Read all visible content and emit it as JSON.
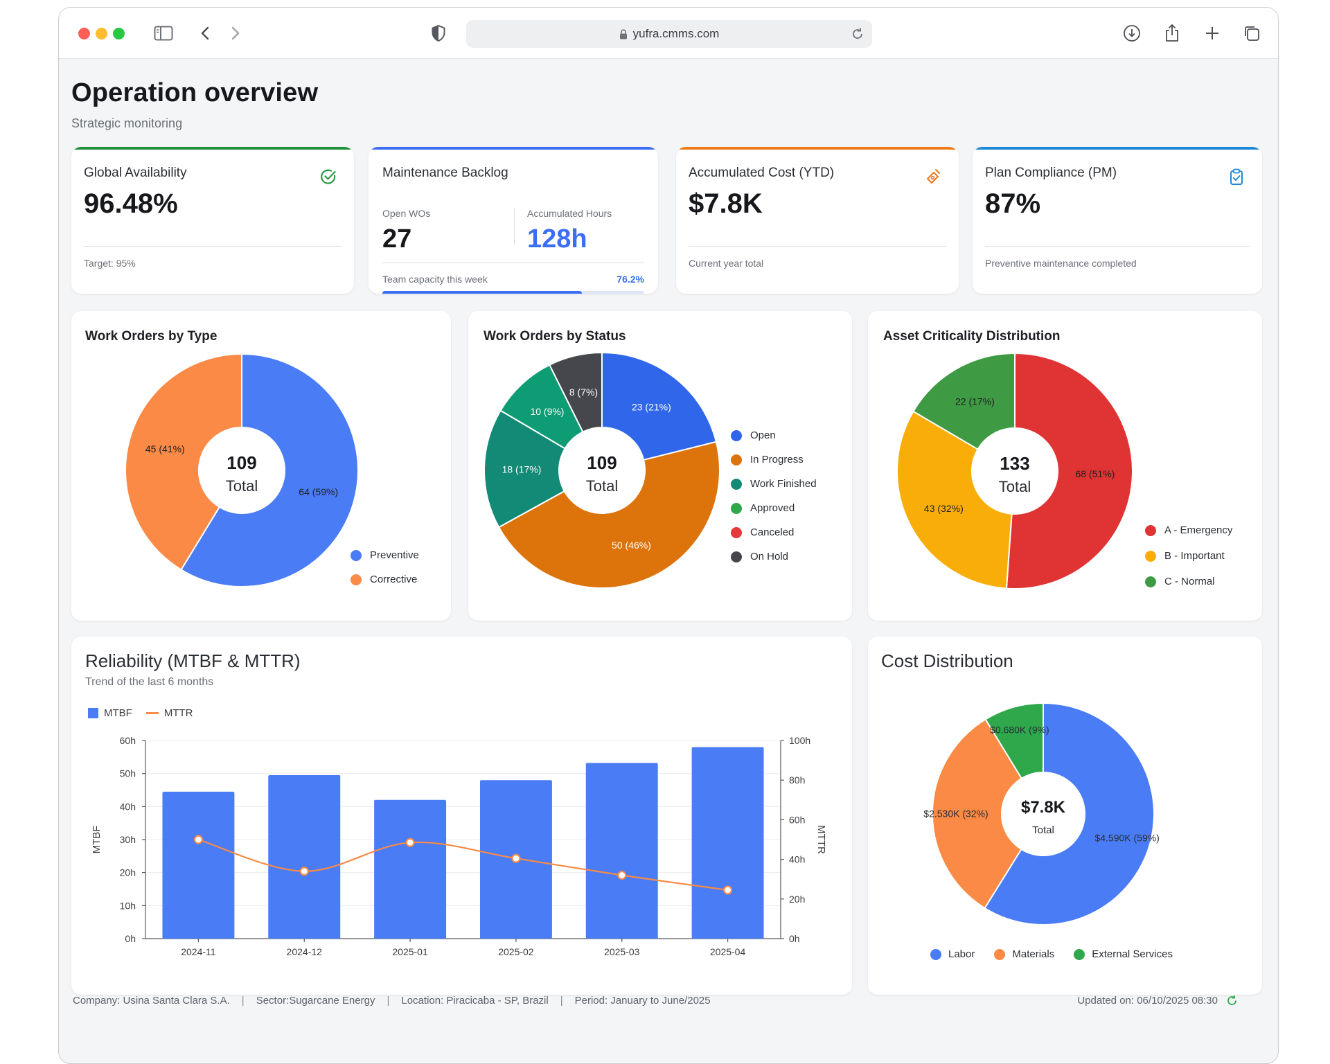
{
  "browser": {
    "url": "yufra.cmms.com"
  },
  "page": {
    "title": "Operation overview",
    "subtitle": "Strategic monitoring"
  },
  "kpis": {
    "availability": {
      "title": "Global Availability",
      "value": "96.48%",
      "note": "Target: 95%",
      "accent": "#1f8f3a",
      "icon": "check-circle-icon"
    },
    "backlog": {
      "title": "Maintenance Backlog",
      "open_label": "Open WOs",
      "open_value": "27",
      "hours_label": "Accumulated Hours",
      "hours_value": "128h",
      "capacity_label": "Team capacity this week",
      "capacity_value": "76.2%",
      "capacity_fraction": 0.762,
      "accent": "#3b6ef5"
    },
    "cost": {
      "title": "Accumulated Cost (YTD)",
      "value": "$7.8K",
      "note": "Current year total",
      "accent": "#f07a1a",
      "icon": "money-icon"
    },
    "compliance": {
      "title": "Plan Compliance (PM)",
      "value": "87%",
      "note": "Preventive maintenance completed",
      "accent": "#1e88d8",
      "icon": "clipboard-check-icon"
    }
  },
  "charts": {
    "by_type": {
      "title": "Work Orders by Type",
      "center_value": "109",
      "center_label": "Total",
      "legend": [
        "Preventive",
        "Corrective"
      ]
    },
    "by_status": {
      "title": "Work Orders by Status",
      "center_value": "109",
      "center_label": "Total",
      "legend": [
        "Open",
        "In Progress",
        "Work Finished",
        "Approved",
        "Canceled",
        "On Hold"
      ]
    },
    "criticality": {
      "title": "Asset Criticality Distribution",
      "center_value": "133",
      "center_label": "Total",
      "legend": [
        "A - Emergency",
        "B - Important",
        "C - Normal"
      ]
    },
    "reliability": {
      "title": "Reliability (MTBF & MTTR)",
      "subtitle": "Trend of the last 6 months",
      "legend": [
        "MTBF",
        "MTTR"
      ],
      "left_axis_label": "MTBF",
      "right_axis_label": "MTTR"
    },
    "cost_dist": {
      "title": "Cost Distribution",
      "center_value": "$7.8K",
      "center_label": "Total",
      "legend": [
        "Labor",
        "Materials",
        "External Services"
      ]
    }
  },
  "chart_data": [
    {
      "type": "pie",
      "title": "Work Orders by Type",
      "labels": [
        "Preventive",
        "Corrective"
      ],
      "values": [
        64,
        45
      ],
      "data_labels": [
        "64 (59%)",
        "45 (41%)"
      ],
      "colors": [
        "#4a7cf5",
        "#fa8a45"
      ]
    },
    {
      "type": "pie",
      "title": "Work Orders by Status",
      "labels": [
        "Open",
        "In Progress",
        "Work Finished",
        "Approved",
        "Canceled",
        "On Hold"
      ],
      "values": [
        23,
        50,
        18,
        10,
        0,
        8
      ],
      "data_labels": [
        "23 (21%)",
        "50 (46%)",
        "18 (17%)",
        "10 (9%)",
        "",
        "8 (7%)"
      ],
      "colors": [
        "#2f66ea",
        "#dd730b",
        "#128a76",
        "#0e9c74",
        "#e43a3a",
        "#45474d"
      ],
      "legend_colors": [
        "#2f66ea",
        "#dd730b",
        "#128a76",
        "#2ea84a",
        "#e43a3a",
        "#45474d"
      ]
    },
    {
      "type": "pie",
      "title": "Asset Criticality Distribution",
      "labels": [
        "A - Emergency",
        "B - Important",
        "C - Normal"
      ],
      "values": [
        68,
        43,
        22
      ],
      "data_labels": [
        "68 (51%)",
        "43 (32%)",
        "22 (17%)"
      ],
      "colors": [
        "#e03434",
        "#f9ad08",
        "#3f9a44"
      ]
    },
    {
      "type": "bar",
      "title": "Reliability (MTBF & MTTR)",
      "categories": [
        "2024-11",
        "2024-12",
        "2025-01",
        "2025-02",
        "2025-03",
        "2025-04"
      ],
      "series": [
        {
          "name": "MTBF",
          "values": [
            44.5,
            49.5,
            42,
            48,
            53.2,
            58
          ],
          "axis": "left",
          "color": "#4a7cf5"
        },
        {
          "name": "MTTR",
          "values": [
            50,
            34,
            48.5,
            40.5,
            32,
            24.5
          ],
          "axis": "right",
          "color": "#fa8a45",
          "type": "line"
        }
      ],
      "ylim_left": [
        0,
        60
      ],
      "yticks_left": [
        "0h",
        "10h",
        "20h",
        "30h",
        "40h",
        "50h",
        "60h"
      ],
      "ylim_right": [
        0,
        100
      ],
      "yticks_right": [
        "0h",
        "20h",
        "40h",
        "60h",
        "80h",
        "100h"
      ],
      "ylabel_left": "MTBF",
      "ylabel_right": "MTTR",
      "grid": true,
      "legend_position": "top-left"
    },
    {
      "type": "pie",
      "title": "Cost Distribution",
      "labels": [
        "Labor",
        "Materials",
        "External Services"
      ],
      "values": [
        4.59,
        2.53,
        0.68
      ],
      "data_labels": [
        "$4.590K (59%)",
        "$2.530K (32%)",
        "$0.680K (9%)"
      ],
      "colors": [
        "#4a7cf5",
        "#fa8a45",
        "#2ea84a"
      ]
    }
  ],
  "footer": {
    "company": "Company: Usina Santa Clara S.A.",
    "sector": "Sector:Sugarcane Energy",
    "location": "Location: Piracicaba - SP, Brazil",
    "period": "Period: January to June/2025",
    "updated": "Updated on: 06/10/2025 08:30"
  },
  "colors": {
    "accent_blue": "#3b6ef5",
    "refresh_green": "#2ea84a"
  }
}
